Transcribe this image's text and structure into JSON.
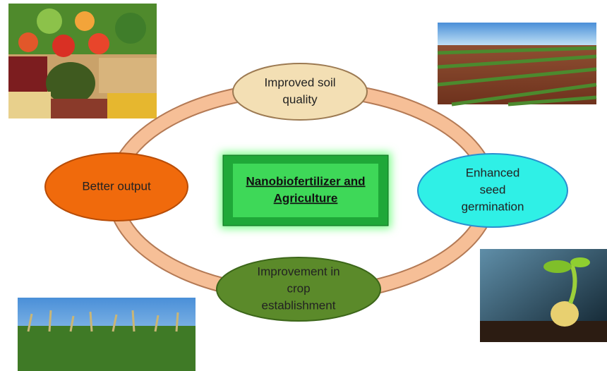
{
  "center": {
    "lines": [
      "Nanobiofertilizer and",
      "Agriculture"
    ]
  },
  "nodes": [
    {
      "lines": [
        "Improved soil",
        "quality"
      ]
    },
    {
      "lines": [
        "Enhanced",
        "seed",
        "germination"
      ]
    },
    {
      "lines": [
        "Improvement in",
        "crop",
        "establishment"
      ]
    },
    {
      "lines": [
        "Better output"
      ]
    }
  ]
}
